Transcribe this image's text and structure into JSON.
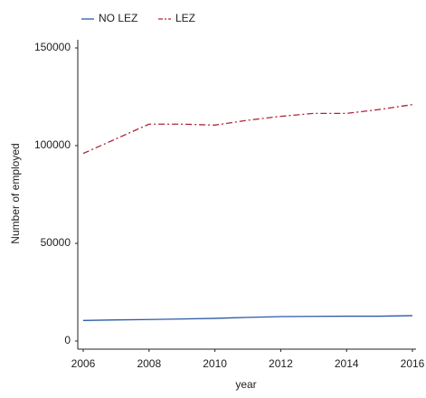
{
  "chart_data": {
    "type": "line",
    "x": [
      2006,
      2007,
      2008,
      2009,
      2010,
      2011,
      2012,
      2013,
      2014,
      2015,
      2016
    ],
    "series": [
      {
        "name": "NO LEZ",
        "color": "#2b5aa6",
        "style": "solid",
        "values": [
          10500,
          10800,
          11000,
          11300,
          11600,
          12100,
          12500,
          12600,
          12700,
          12700,
          13000
        ]
      },
      {
        "name": "LEZ",
        "color": "#b0243a",
        "style": "dashed",
        "values": [
          96000,
          103500,
          111000,
          111000,
          110500,
          113000,
          115000,
          116500,
          116500,
          118500,
          121000
        ]
      }
    ],
    "xlabel": "year",
    "ylabel": "Number of employed",
    "xlim": [
      2006,
      2016
    ],
    "xticks": [
      2006,
      2008,
      2010,
      2012,
      2014,
      2016
    ],
    "ylim": [
      0,
      150000
    ],
    "yticks": [
      0,
      50000,
      100000,
      150000
    ],
    "legend": "top"
  }
}
